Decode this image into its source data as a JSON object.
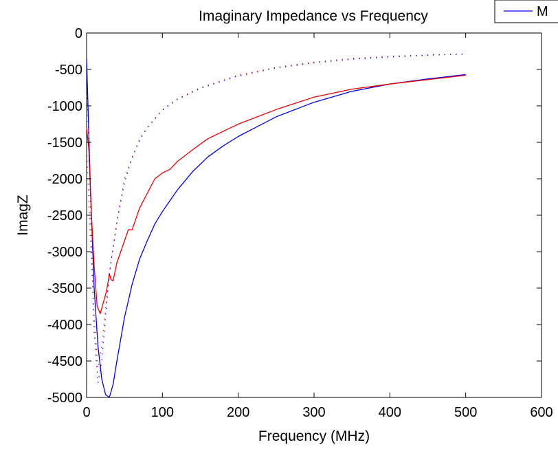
{
  "chart_data": {
    "type": "line",
    "title": "Imaginary Impedance vs Frequency",
    "xlabel": "Frequency (MHz)",
    "ylabel": "ImagZ",
    "xlim": [
      0,
      600
    ],
    "ylim": [
      -5000,
      0
    ],
    "xticks": [
      0,
      100,
      200,
      300,
      400,
      500,
      600
    ],
    "yticks": [
      0,
      -500,
      -1000,
      -1500,
      -2000,
      -2500,
      -3000,
      -3500,
      -4000,
      -4500,
      -5000
    ],
    "grid": false,
    "legend": {
      "placement": "top-right",
      "entries": [
        "M"
      ]
    },
    "colors": {
      "blue": "#0000ee",
      "red": "#ee0000"
    },
    "series": [
      {
        "name": "M",
        "color": "#0000ee",
        "style": "solid",
        "x": [
          0,
          5,
          10,
          15,
          20,
          25,
          30,
          35,
          40,
          50,
          60,
          70,
          80,
          90,
          100,
          120,
          140,
          160,
          180,
          200,
          250,
          300,
          350,
          400,
          450,
          500
        ],
        "y": [
          -350,
          -2100,
          -3500,
          -4300,
          -4750,
          -4960,
          -5000,
          -4820,
          -4500,
          -3900,
          -3450,
          -3100,
          -2850,
          -2620,
          -2450,
          -2150,
          -1900,
          -1700,
          -1550,
          -1420,
          -1150,
          -950,
          -800,
          -700,
          -630,
          -570
        ]
      },
      {
        "color": "#ee0000",
        "style": "solid",
        "x": [
          0,
          3,
          6,
          10,
          14,
          18,
          22,
          26,
          29,
          30,
          32,
          35,
          40,
          45,
          50,
          55,
          60,
          70,
          80,
          90,
          100,
          110,
          120,
          140,
          160,
          180,
          200,
          250,
          300,
          350,
          400,
          450,
          500
        ],
        "y": [
          -1300,
          -1600,
          -2400,
          -3200,
          -3750,
          -3850,
          -3700,
          -3550,
          -3380,
          -3300,
          -3380,
          -3400,
          -3150,
          -3000,
          -2850,
          -2700,
          -2700,
          -2400,
          -2200,
          -2000,
          -1920,
          -1870,
          -1760,
          -1600,
          -1450,
          -1350,
          -1250,
          -1050,
          -880,
          -770,
          -700,
          -640,
          -580
        ]
      },
      {
        "color": "#ee0000",
        "style": "dotted",
        "x": [
          0,
          5,
          10,
          15,
          20,
          25,
          30,
          40,
          50,
          60,
          70,
          80,
          100,
          120,
          150,
          200,
          250,
          300,
          350,
          400,
          450,
          500
        ],
        "y": [
          -1600,
          -2800,
          -3900,
          -4600,
          -4300,
          -3800,
          -3300,
          -2600,
          -2000,
          -1700,
          -1450,
          -1300,
          -1050,
          -900,
          -750,
          -580,
          -470,
          -400,
          -350,
          -320,
          -300,
          -290
        ]
      },
      {
        "color": "#0000ee",
        "style": "dotted",
        "x": [
          0,
          5,
          10,
          15,
          20,
          25,
          30,
          40,
          50,
          60,
          70,
          80,
          100,
          120,
          150,
          200,
          250,
          300,
          350,
          400,
          450,
          500
        ],
        "y": [
          -500,
          -2300,
          -4100,
          -4800,
          -4500,
          -3900,
          -3300,
          -2600,
          -2050,
          -1720,
          -1470,
          -1300,
          -1060,
          -910,
          -760,
          -590,
          -480,
          -410,
          -360,
          -330,
          -305,
          -290
        ]
      }
    ]
  }
}
